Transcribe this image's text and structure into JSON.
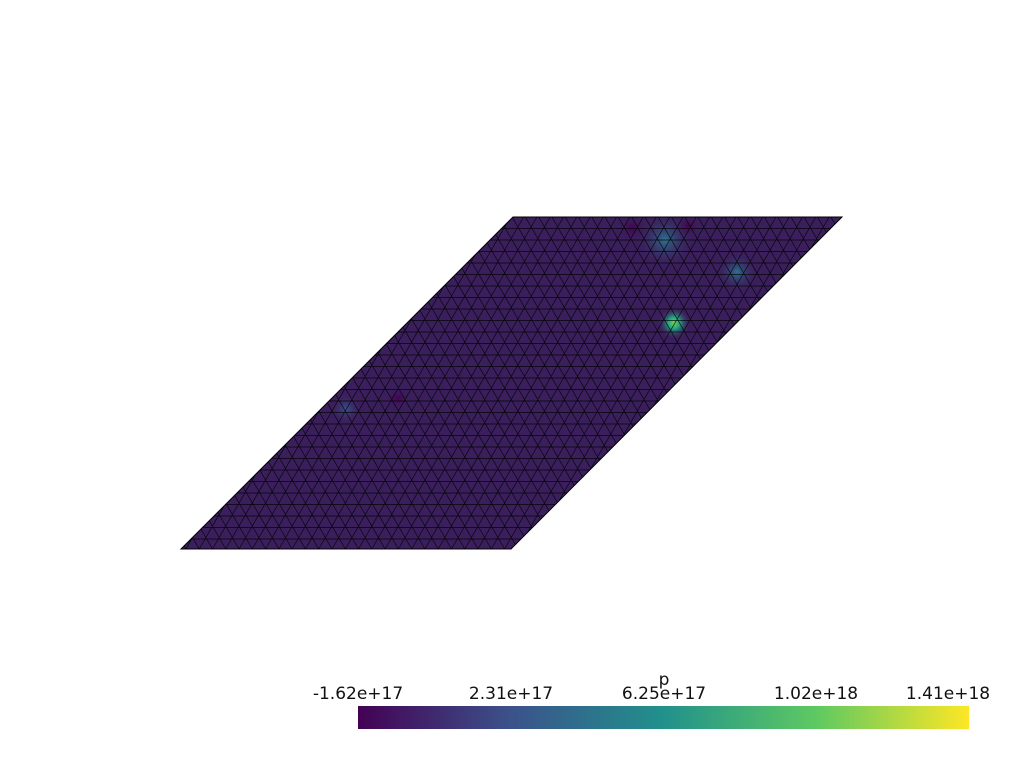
{
  "scalar_bar": {
    "title": "p",
    "colormap": "viridis",
    "min": -1.62e+17,
    "max": 1.41e+18,
    "tick_labels": [
      "-1.62e+17",
      "2.31e+17",
      "6.25e+17",
      "1.02e+18",
      "1.41e+18"
    ],
    "colors": [
      "#440154",
      "#3b528b",
      "#21918c",
      "#5ec962",
      "#fde725"
    ]
  },
  "mesh": {
    "shape": "parallelogram",
    "background_field_color": "#3b1f5c",
    "edge_color": "#000000"
  }
}
